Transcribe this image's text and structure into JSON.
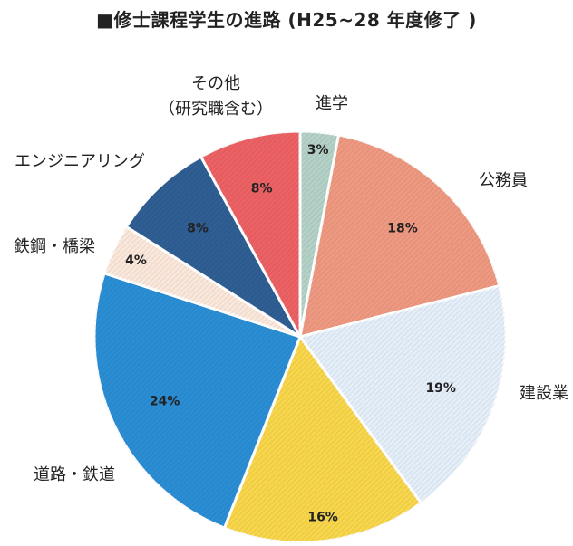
{
  "title": "■修士課程学生の進路 (H25~28 年度修了 )",
  "chart_data": {
    "type": "pie",
    "title": "■修士課程学生の進路 (H25~28 年度修了 )",
    "start": "12 o'clock",
    "direction": "clockwise",
    "slices": [
      {
        "label": "進学",
        "value": 3,
        "display": "3%",
        "color": "#b5d3c8",
        "pct_color": "#222222"
      },
      {
        "label": "公務員",
        "value": 18,
        "display": "18%",
        "color": "#f09a82",
        "pct_color": "#222222"
      },
      {
        "label": "建設業",
        "value": 19,
        "display": "19%",
        "color": "#e6f0fb",
        "pct_color": "#222222"
      },
      {
        "label": "",
        "value": 16,
        "display": "16%",
        "color": "#fad84c",
        "pct_color": "#222222"
      },
      {
        "label": "道路・鉄道",
        "value": 24,
        "display": "24%",
        "color": "#2b8fd6",
        "pct_color": "#222222"
      },
      {
        "label": "鉄鋼・橋梁",
        "value": 4,
        "display": "4%",
        "color": "#fde9dc",
        "pct_color": "#222222"
      },
      {
        "label": "エンジニアリング",
        "value": 8,
        "display": "8%",
        "color": "#2f5f94",
        "pct_color": "#ffffff"
      },
      {
        "label": "その他\n（研究職含む）",
        "value": 8,
        "display": "8%",
        "color": "#ee6265",
        "pct_color": "#222222"
      }
    ]
  }
}
